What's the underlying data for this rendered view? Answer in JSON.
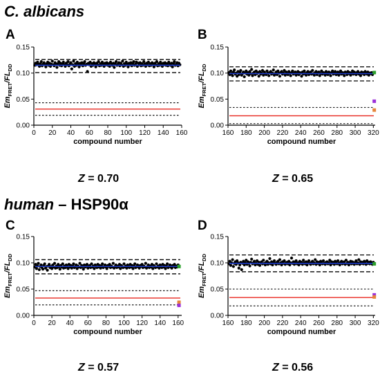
{
  "sections": [
    {
      "organism": "C. albicans",
      "suffix": ""
    },
    {
      "organism": "human",
      "suffix": " – HSP90α"
    }
  ],
  "chart_data": [
    {
      "panel": "A",
      "type": "scatter",
      "xlabel": "compound number",
      "ylabel": {
        "base1": "Em",
        "sub1": "FRET",
        "mid": "/FL",
        "sub2": "DD"
      },
      "xlim": [
        0,
        160
      ],
      "xticks": [
        0,
        20,
        40,
        60,
        80,
        100,
        120,
        140,
        160
      ],
      "ylim": [
        0,
        0.15
      ],
      "yticks": [
        "0.00",
        "0.05",
        "0.10",
        "0.15"
      ],
      "z_label": "Z",
      "z_value": "= 0.70",
      "sample_mean": 0.115,
      "sample_upper_band": 0.126,
      "sample_lower_band": 0.101,
      "control_mean": 0.031,
      "control_upper_band": 0.043,
      "control_lower_band": 0.019,
      "sample_x_start": 1,
      "sample_y": [
        0.115,
        0.119,
        0.116,
        0.121,
        0.117,
        0.113,
        0.118,
        0.122,
        0.114,
        0.117,
        0.12,
        0.116,
        0.112,
        0.118,
        0.121,
        0.115,
        0.119,
        0.113,
        0.117,
        0.123,
        0.116,
        0.114,
        0.12,
        0.117,
        0.111,
        0.118,
        0.122,
        0.115,
        0.119,
        0.114,
        0.117,
        0.121,
        0.116,
        0.113,
        0.119,
        0.116,
        0.122,
        0.114,
        0.117,
        0.12,
        0.108,
        0.116,
        0.123,
        0.113,
        0.118,
        0.115,
        0.121,
        0.117,
        0.112,
        0.119,
        0.116,
        0.12,
        0.114,
        0.118,
        0.122,
        0.115,
        0.117,
        0.103,
        0.119,
        0.116,
        0.121,
        0.113,
        0.118,
        0.115,
        0.12,
        0.117,
        0.112,
        0.119,
        0.116,
        0.122,
        0.114,
        0.118,
        0.115,
        0.121,
        0.117,
        0.113,
        0.119,
        0.116,
        0.12,
        0.115,
        0.118,
        0.113,
        0.121,
        0.117,
        0.115,
        0.119,
        0.111,
        0.118,
        0.122,
        0.115,
        0.117,
        0.12,
        0.114,
        0.119,
        0.116,
        0.123,
        0.113,
        0.118,
        0.115,
        0.121,
        0.117,
        0.112,
        0.119,
        0.116,
        0.12,
        0.114,
        0.118,
        0.122,
        0.115,
        0.117,
        0.121,
        0.113,
        0.119,
        0.116,
        0.12,
        0.114,
        0.118,
        0.115,
        0.122,
        0.117,
        0.113,
        0.119,
        0.116,
        0.121,
        0.114,
        0.118,
        0.115,
        0.12,
        0.117,
        0.112,
        0.119,
        0.116,
        0.122,
        0.114,
        0.118,
        0.115,
        0.121,
        0.117,
        0.113,
        0.119,
        0.116,
        0.12,
        0.115,
        0.118,
        0.114,
        0.121,
        0.117,
        0.115,
        0.119,
        0.112,
        0.118,
        0.122,
        0.115,
        0.117,
        0.12,
        0.114,
        0.119,
        0.116
      ],
      "extra_points": []
    },
    {
      "panel": "B",
      "type": "scatter",
      "xlabel": "compound number",
      "ylabel": {
        "base1": "Em",
        "sub1": "FRET",
        "mid": "/FL",
        "sub2": "DD"
      },
      "xlim": [
        160,
        322
      ],
      "xticks": [
        160,
        180,
        200,
        220,
        240,
        260,
        280,
        300,
        320
      ],
      "ylim": [
        0,
        0.15
      ],
      "yticks": [
        "0.00",
        "0.05",
        "0.10",
        "0.15"
      ],
      "z_label": "Z",
      "z_value": "= 0.65",
      "sample_mean": 0.099,
      "sample_upper_band": 0.112,
      "sample_lower_band": 0.085,
      "control_mean": 0.018,
      "control_upper_band": 0.034,
      "control_lower_band": 0.003,
      "sample_x_start": 161,
      "sample_y": [
        0.101,
        0.097,
        0.104,
        0.099,
        0.095,
        0.102,
        0.106,
        0.098,
        0.1,
        0.094,
        0.103,
        0.097,
        0.101,
        0.105,
        0.096,
        0.099,
        0.102,
        0.093,
        0.1,
        0.104,
        0.098,
        0.101,
        0.096,
        0.103,
        0.099,
        0.107,
        0.095,
        0.1,
        0.102,
        0.097,
        0.104,
        0.099,
        0.101,
        0.094,
        0.103,
        0.098,
        0.1,
        0.105,
        0.096,
        0.102,
        0.099,
        0.097,
        0.104,
        0.1,
        0.095,
        0.101,
        0.103,
        0.098,
        0.1,
        0.106,
        0.096,
        0.099,
        0.102,
        0.097,
        0.104,
        0.1,
        0.094,
        0.101,
        0.103,
        0.098,
        0.1,
        0.105,
        0.096,
        0.102,
        0.099,
        0.097,
        0.103,
        0.1,
        0.095,
        0.101,
        0.104,
        0.098,
        0.1,
        0.102,
        0.096,
        0.099,
        0.103,
        0.097,
        0.101,
        0.1,
        0.094,
        0.102,
        0.098,
        0.104,
        0.099,
        0.096,
        0.101,
        0.103,
        0.097,
        0.1,
        0.102,
        0.098,
        0.105,
        0.099,
        0.096,
        0.101,
        0.103,
        0.097,
        0.1,
        0.102,
        0.095,
        0.099,
        0.104,
        0.098,
        0.101,
        0.1,
        0.096,
        0.103,
        0.099,
        0.097,
        0.102,
        0.1,
        0.095,
        0.101,
        0.104,
        0.098,
        0.1,
        0.103,
        0.097,
        0.099,
        0.102,
        0.096,
        0.1,
        0.104,
        0.098,
        0.101,
        0.099,
        0.095,
        0.102,
        0.1,
        0.097,
        0.103,
        0.099,
        0.101,
        0.096,
        0.1,
        0.104,
        0.098,
        0.102,
        0.099,
        0.097,
        0.101,
        0.103,
        0.098,
        0.1,
        0.095,
        0.102,
        0.099,
        0.101,
        0.097,
        0.103,
        0.1,
        0.098,
        0.102,
        0.096,
        0.1,
        0.099,
        0.101,
        0.097,
        0.1
      ],
      "extra_points": [
        {
          "x": 321,
          "y": 0.101,
          "color": "#2ca02c"
        },
        {
          "x": 321,
          "y": 0.046,
          "color": "#9b30d9"
        },
        {
          "x": 321,
          "y": 0.029,
          "color": "#e6863a"
        }
      ]
    },
    {
      "panel": "C",
      "type": "scatter",
      "xlabel": "compound number",
      "ylabel": {
        "base1": "Em",
        "sub1": "FRET",
        "mid": "/FL",
        "sub2": "DD"
      },
      "xlim": [
        0,
        164
      ],
      "xticks": [
        0,
        20,
        40,
        60,
        80,
        100,
        120,
        140,
        160
      ],
      "ylim": [
        0,
        0.15
      ],
      "yticks": [
        "0.00",
        "0.05",
        "0.10",
        "0.15"
      ],
      "z_label": "Z",
      "z_value": "= 0.57",
      "sample_mean": 0.093,
      "sample_upper_band": 0.106,
      "sample_lower_band": 0.079,
      "control_mean": 0.033,
      "control_upper_band": 0.047,
      "control_lower_band": 0.02,
      "sample_x_start": 1,
      "sample_y": [
        0.092,
        0.097,
        0.089,
        0.094,
        0.099,
        0.087,
        0.093,
        0.096,
        0.091,
        0.088,
        0.095,
        0.098,
        0.09,
        0.093,
        0.086,
        0.094,
        0.097,
        0.091,
        0.093,
        0.089,
        0.096,
        0.092,
        0.099,
        0.09,
        0.094,
        0.091,
        0.097,
        0.093,
        0.088,
        0.095,
        0.092,
        0.098,
        0.09,
        0.094,
        0.091,
        0.096,
        0.093,
        0.089,
        0.097,
        0.092,
        0.095,
        0.09,
        0.094,
        0.098,
        0.091,
        0.093,
        0.096,
        0.089,
        0.094,
        0.092,
        0.099,
        0.091,
        0.095,
        0.093,
        0.088,
        0.096,
        0.092,
        0.094,
        0.097,
        0.09,
        0.093,
        0.095,
        0.091,
        0.098,
        0.092,
        0.094,
        0.089,
        0.096,
        0.093,
        0.091,
        0.097,
        0.092,
        0.095,
        0.09,
        0.094,
        0.098,
        0.091,
        0.093,
        0.096,
        0.092,
        0.089,
        0.095,
        0.093,
        0.097,
        0.091,
        0.094,
        0.092,
        0.099,
        0.09,
        0.093,
        0.096,
        0.091,
        0.094,
        0.092,
        0.097,
        0.089,
        0.095,
        0.093,
        0.091,
        0.098,
        0.092,
        0.094,
        0.09,
        0.096,
        0.093,
        0.091,
        0.097,
        0.092,
        0.095,
        0.089,
        0.094,
        0.098,
        0.091,
        0.093,
        0.096,
        0.092,
        0.09,
        0.095,
        0.093,
        0.097,
        0.091,
        0.094,
        0.092,
        0.099,
        0.09,
        0.093,
        0.096,
        0.091,
        0.094,
        0.092,
        0.097,
        0.089,
        0.095,
        0.093,
        0.091,
        0.098,
        0.092,
        0.094,
        0.09,
        0.096,
        0.093,
        0.091,
        0.097,
        0.092,
        0.095,
        0.089,
        0.094,
        0.098,
        0.091,
        0.093,
        0.096,
        0.092,
        0.09,
        0.095,
        0.093,
        0.097,
        0.091,
        0.094,
        0.092,
        0.096
      ],
      "extra_points": [
        {
          "x": 161,
          "y": 0.093,
          "color": "#2ca02c"
        },
        {
          "x": 161,
          "y": 0.025,
          "color": "#e6863a"
        },
        {
          "x": 161,
          "y": 0.019,
          "color": "#9b30d9"
        }
      ]
    },
    {
      "panel": "D",
      "type": "scatter",
      "xlabel": "compound number",
      "ylabel": {
        "base1": "Em",
        "sub1": "FRET",
        "mid": "/FL",
        "sub2": "DD"
      },
      "xlim": [
        160,
        322
      ],
      "xticks": [
        160,
        180,
        200,
        220,
        240,
        260,
        280,
        300,
        320
      ],
      "ylim": [
        0,
        0.15
      ],
      "yticks": [
        "0.00",
        "0.05",
        "0.10",
        "0.15"
      ],
      "z_label": "Z",
      "z_value": "= 0.56",
      "sample_mean": 0.099,
      "sample_upper_band": 0.115,
      "sample_lower_band": 0.083,
      "control_mean": 0.034,
      "control_upper_band": 0.05,
      "control_lower_band": 0.018,
      "sample_x_start": 161,
      "sample_y": [
        0.098,
        0.103,
        0.095,
        0.1,
        0.106,
        0.093,
        0.099,
        0.102,
        0.097,
        0.104,
        0.1,
        0.09,
        0.096,
        0.101,
        0.087,
        0.099,
        0.103,
        0.096,
        0.1,
        0.105,
        0.097,
        0.102,
        0.099,
        0.094,
        0.101,
        0.107,
        0.098,
        0.1,
        0.103,
        0.096,
        0.099,
        0.104,
        0.097,
        0.101,
        0.095,
        0.1,
        0.102,
        0.098,
        0.105,
        0.099,
        0.096,
        0.101,
        0.103,
        0.097,
        0.1,
        0.108,
        0.098,
        0.102,
        0.096,
        0.1,
        0.104,
        0.099,
        0.097,
        0.101,
        0.103,
        0.098,
        0.106,
        0.1,
        0.096,
        0.102,
        0.099,
        0.104,
        0.097,
        0.1,
        0.101,
        0.098,
        0.103,
        0.096,
        0.1,
        0.109,
        0.099,
        0.102,
        0.097,
        0.101,
        0.104,
        0.098,
        0.1,
        0.096,
        0.103,
        0.099,
        0.101,
        0.097,
        0.105,
        0.1,
        0.098,
        0.102,
        0.096,
        0.1,
        0.104,
        0.099,
        0.097,
        0.101,
        0.103,
        0.098,
        0.1,
        0.106,
        0.097,
        0.102,
        0.099,
        0.101,
        0.096,
        0.103,
        0.1,
        0.098,
        0.104,
        0.099,
        0.097,
        0.101,
        0.102,
        0.098,
        0.1,
        0.105,
        0.096,
        0.102,
        0.099,
        0.101,
        0.097,
        0.103,
        0.1,
        0.098,
        0.104,
        0.099,
        0.096,
        0.101,
        0.103,
        0.098,
        0.1,
        0.102,
        0.097,
        0.105,
        0.099,
        0.101,
        0.096,
        0.1,
        0.103,
        0.098,
        0.102,
        0.099,
        0.097,
        0.101,
        0.104,
        0.098,
        0.1,
        0.106,
        0.097,
        0.102,
        0.099,
        0.101,
        0.098,
        0.103,
        0.1,
        0.097,
        0.104,
        0.099,
        0.101,
        0.098,
        0.102,
        0.1,
        0.097,
        0.101
      ],
      "extra_points": [
        {
          "x": 321,
          "y": 0.098,
          "color": "#2ca02c"
        },
        {
          "x": 321,
          "y": 0.039,
          "color": "#9b30d9"
        },
        {
          "x": 321,
          "y": 0.035,
          "color": "#e6863a"
        }
      ]
    }
  ]
}
